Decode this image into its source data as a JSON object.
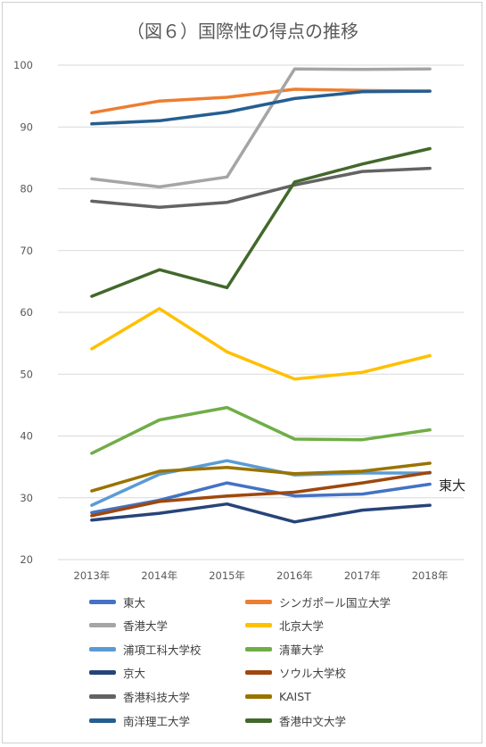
{
  "chart_data": {
    "type": "line",
    "title": "（図６）国際性の得点の推移",
    "categories": [
      "2013年",
      "2014年",
      "2015年",
      "2016年",
      "2017年",
      "2018年"
    ],
    "ylim": [
      20,
      100
    ],
    "yticks": [
      20,
      30,
      40,
      50,
      60,
      70,
      80,
      90,
      100
    ],
    "grid": true,
    "legend_position": "bottom",
    "annotation": "東大",
    "series": [
      {
        "name": "東大",
        "color": "#4472c4",
        "values": [
          27.6,
          29.6,
          32.4,
          30.3,
          30.6,
          32.2
        ]
      },
      {
        "name": "シンガポール国立大学",
        "color": "#ed7d31",
        "values": [
          92.3,
          94.2,
          94.8,
          96.1,
          95.9,
          95.8
        ]
      },
      {
        "name": "香港大学",
        "color": "#a5a5a5",
        "values": [
          81.6,
          80.3,
          81.9,
          99.4,
          99.3,
          99.4
        ]
      },
      {
        "name": "北京大学",
        "color": "#ffc000",
        "values": [
          54.1,
          60.6,
          53.6,
          49.2,
          50.3,
          53.0
        ]
      },
      {
        "name": "浦項工科大学校",
        "color": "#5b9bd5",
        "values": [
          28.8,
          33.8,
          36.0,
          33.7,
          34.0,
          34.0
        ]
      },
      {
        "name": "清華大学",
        "color": "#70ad47",
        "values": [
          37.2,
          42.6,
          44.6,
          39.5,
          39.4,
          41.0
        ]
      },
      {
        "name": "京大",
        "color": "#264478",
        "values": [
          26.4,
          27.5,
          29.0,
          26.1,
          28.0,
          28.8
        ]
      },
      {
        "name": "ソウル大学校",
        "color": "#9e480e",
        "values": [
          27.1,
          29.4,
          30.3,
          30.9,
          32.4,
          34.1
        ]
      },
      {
        "name": "香港科技大学",
        "color": "#636363",
        "values": [
          78.0,
          77.0,
          77.8,
          80.6,
          82.8,
          83.3
        ]
      },
      {
        "name": "KAIST",
        "color": "#997300",
        "values": [
          31.1,
          34.3,
          34.9,
          33.9,
          34.3,
          35.6
        ]
      },
      {
        "name": "南洋理工大学",
        "color": "#255e91",
        "values": [
          90.5,
          91.0,
          92.4,
          94.6,
          95.7,
          95.8
        ]
      },
      {
        "name": "香港中文大学",
        "color": "#43682b",
        "values": [
          62.6,
          66.9,
          64.0,
          81.1,
          84.0,
          86.5
        ]
      }
    ]
  }
}
